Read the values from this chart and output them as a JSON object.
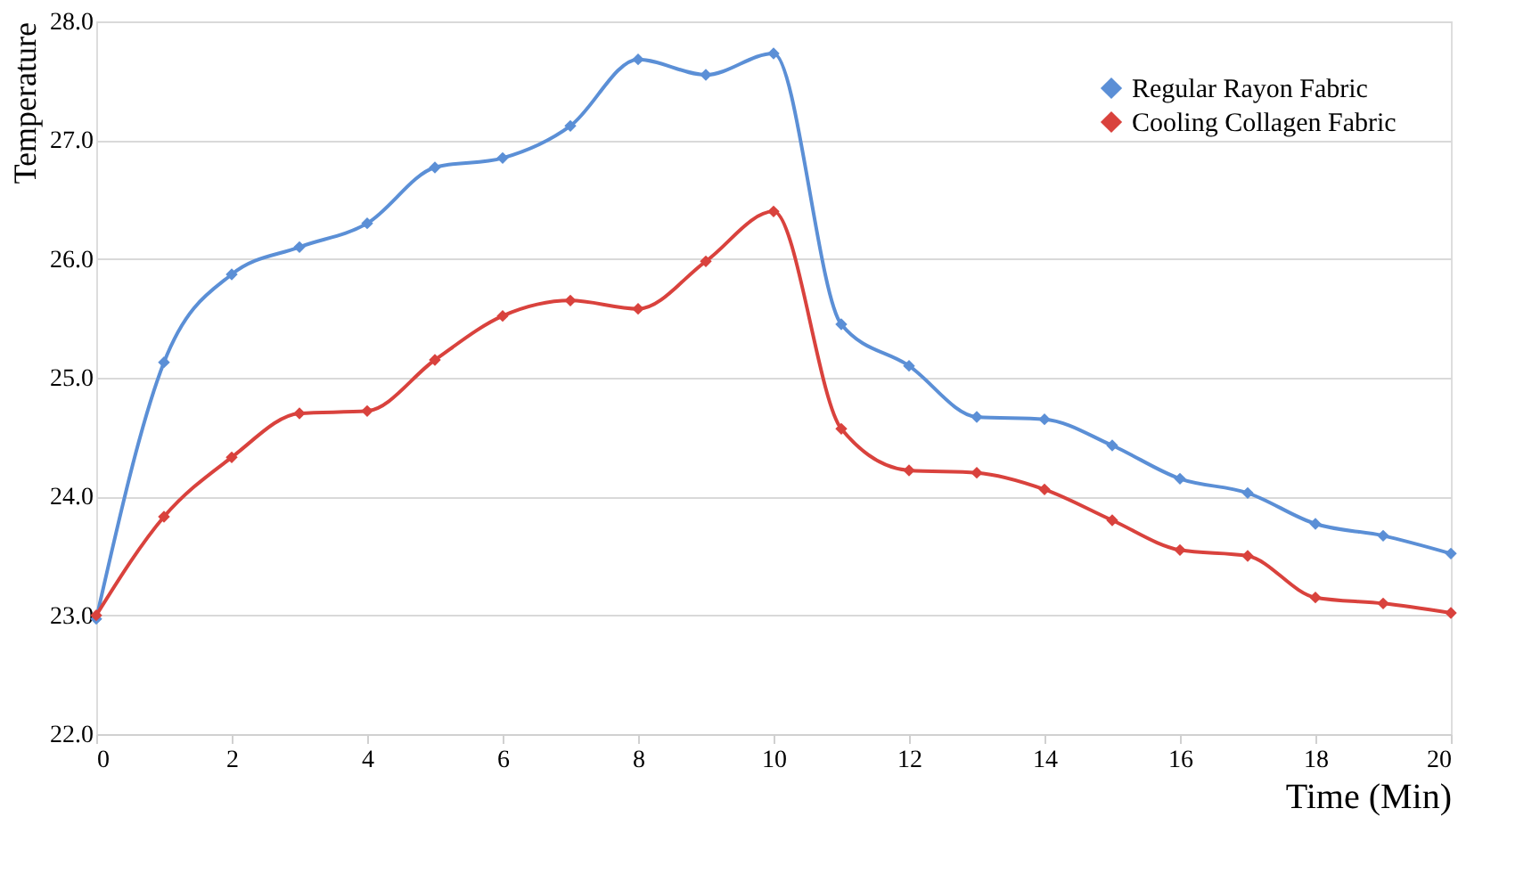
{
  "chart_data": {
    "type": "line",
    "xlabel": "Time (Min)",
    "ylabel": "Temperature",
    "x": [
      0,
      1,
      2,
      3,
      4,
      5,
      6,
      7,
      8,
      9,
      10,
      11,
      12,
      13,
      14,
      15,
      16,
      17,
      18,
      19,
      20
    ],
    "series": [
      {
        "name": "Regular Rayon Fabric",
        "color": "#5b8fd6",
        "values": [
          22.97,
          25.13,
          25.87,
          26.1,
          26.3,
          26.77,
          26.85,
          27.12,
          27.68,
          27.55,
          27.73,
          25.45,
          25.1,
          24.67,
          24.65,
          24.43,
          24.15,
          24.03,
          23.77,
          23.67,
          23.52
        ]
      },
      {
        "name": "Cooling Collagen Fabric",
        "color": "#d9423d",
        "values": [
          23.0,
          23.83,
          24.33,
          24.7,
          24.72,
          25.15,
          25.52,
          25.65,
          25.58,
          25.98,
          26.4,
          24.57,
          24.22,
          24.2,
          24.06,
          23.8,
          23.55,
          23.5,
          23.15,
          23.1,
          23.02
        ]
      }
    ],
    "xlim": [
      0,
      20
    ],
    "xticks": [
      0,
      2,
      4,
      6,
      8,
      10,
      12,
      14,
      16,
      18,
      20
    ],
    "ylim": [
      22,
      28
    ],
    "yticks": [
      {
        "value": 22,
        "label": "22.0"
      },
      {
        "value": 23,
        "label": "23.0"
      },
      {
        "value": 24,
        "label": "24.0"
      },
      {
        "value": 25,
        "label": "25.0"
      },
      {
        "value": 26,
        "label": "26.0"
      },
      {
        "value": 27,
        "label": "27.0"
      },
      {
        "value": 28,
        "label": "28.0"
      }
    ],
    "grid": "y",
    "legend": "top right",
    "marker": "diamond",
    "line_style": "solid"
  }
}
